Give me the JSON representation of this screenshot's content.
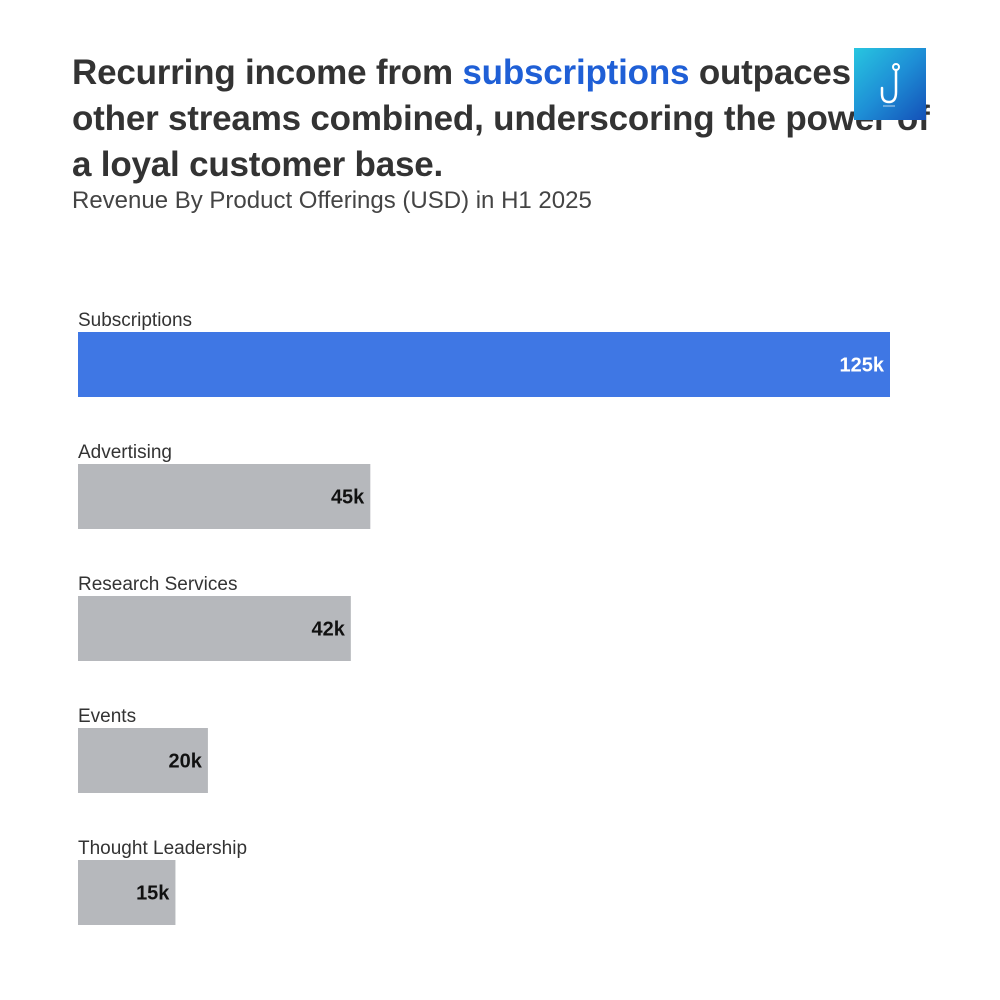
{
  "headline": {
    "part1": "Recurring income from ",
    "accent": "subscriptions",
    "part2": " outpaces all other streams combined, underscoring the power of a loyal customer base."
  },
  "subtitle": "Revenue By Product Offerings (USD) in H1 2025",
  "logo": {
    "icon": "hook-icon"
  },
  "colors": {
    "highlight": "#3f77e4",
    "muted": "#b6b8bc",
    "accent_text": "#1f5fd6"
  },
  "chart_data": {
    "type": "bar",
    "orientation": "horizontal",
    "categories": [
      "Subscriptions",
      "Advertising",
      "Research Services",
      "Events",
      "Thought Leadership"
    ],
    "values": [
      125,
      45,
      42,
      20,
      15
    ],
    "value_labels": [
      "125k",
      "45k",
      "42k",
      "20k",
      "15k"
    ],
    "highlighted": [
      "Subscriptions"
    ],
    "title": "Revenue By Product Offerings (USD) in H1 2025",
    "xlabel": "",
    "ylabel": "",
    "xlim": [
      0,
      125
    ],
    "grid": false
  }
}
